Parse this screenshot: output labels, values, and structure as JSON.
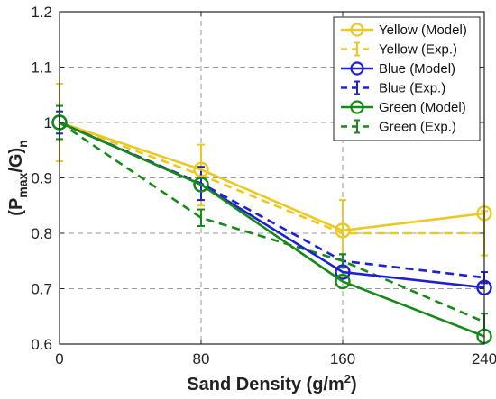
{
  "chart_data": {
    "type": "line",
    "xlabel": "Sand Density (g/m²)",
    "ylabel": "(P_max/G)_n",
    "x": [
      0,
      80,
      160,
      240
    ],
    "xticks": [
      "0",
      "80",
      "160",
      "240"
    ],
    "yticks": [
      "0.6",
      "0.7",
      "0.8",
      "0.9",
      "1",
      "1.1",
      "1.2"
    ],
    "xlim": [
      0,
      240
    ],
    "ylim": [
      0.6,
      1.2
    ],
    "grid": true,
    "legend_position": "top-right",
    "series": [
      {
        "name": "Yellow (Model)",
        "color": "#EDC820",
        "dash": false,
        "marker": "circle",
        "values": [
          1.0,
          0.915,
          0.805,
          0.836
        ]
      },
      {
        "name": "Yellow (Exp.)",
        "color": "#EDC820",
        "dash": true,
        "marker": "errorbar",
        "values": [
          1.0,
          0.905,
          0.8,
          0.8
        ],
        "errors": [
          0.07,
          0.055,
          0.06,
          0.04
        ]
      },
      {
        "name": "Blue (Model)",
        "color": "#1F1FD6",
        "dash": false,
        "marker": "circle",
        "values": [
          1.0,
          0.888,
          0.73,
          0.702
        ]
      },
      {
        "name": "Blue (Exp.)",
        "color": "#1F1FD6",
        "dash": true,
        "marker": "errorbar",
        "values": [
          1.0,
          0.89,
          0.75,
          0.72
        ],
        "errors": [
          0.02,
          0.03,
          0.012,
          0.01
        ]
      },
      {
        "name": "Green (Model)",
        "color": "#168A16",
        "dash": false,
        "marker": "circle",
        "values": [
          1.0,
          0.888,
          0.713,
          0.614
        ]
      },
      {
        "name": "Green (Exp.)",
        "color": "#168A16",
        "dash": true,
        "marker": "errorbar",
        "values": [
          1.0,
          0.828,
          0.75,
          0.64
        ],
        "errors": [
          0.03,
          0.015,
          0.012,
          0.015
        ]
      }
    ]
  }
}
